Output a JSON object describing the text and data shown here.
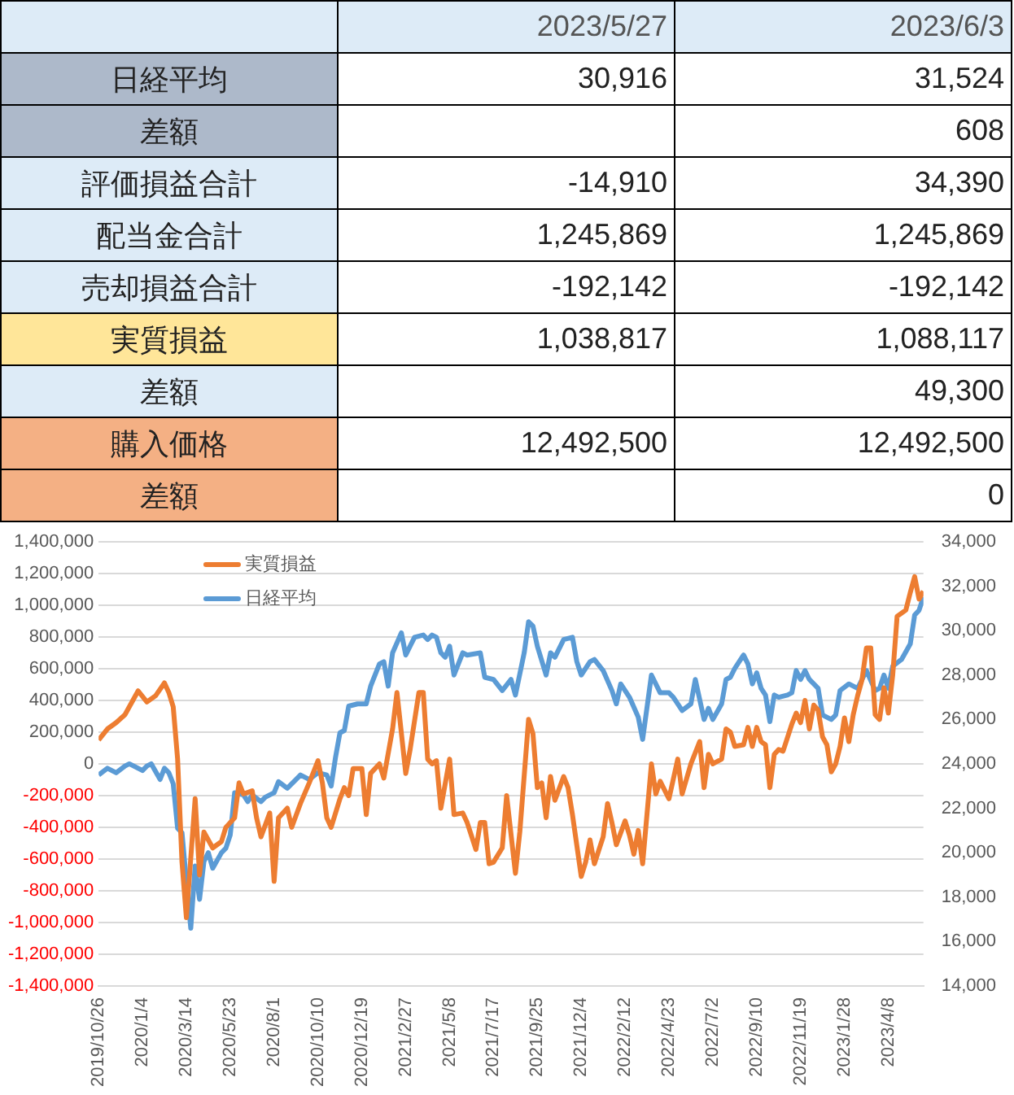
{
  "chart_data": [
    {
      "type": "other",
      "categories": [
        "2023/5/27",
        "2023/6/3"
      ],
      "y_categories": [
        "日経平均",
        "差額",
        "評価損益合計",
        "配当金合計",
        "売却損益合計",
        "実質損益",
        "差額",
        "購入価格",
        "差額"
      ],
      "cell_labels": [
        [
          "30,916",
          "31,524"
        ],
        [
          null,
          "608"
        ],
        [
          "-14,910",
          "34,390"
        ],
        [
          "1,245,869",
          "1,245,869"
        ],
        [
          "-192,142",
          "-192,142"
        ],
        [
          "1,038,817",
          "1,088,117"
        ],
        [
          null,
          "49,300"
        ],
        [
          "12,492,500",
          "12,492,500"
        ],
        [
          null,
          "0"
        ]
      ]
    },
    {
      "type": "line",
      "grid": "y",
      "legend": "top left",
      "xlim": [
        "2019-10-26",
        "2023-06-03"
      ],
      "xticks": [
        {
          "value": "2019-10-26",
          "label": "2019/10/26"
        },
        {
          "value": "2020-01-04",
          "label": "2020/1/4"
        },
        {
          "value": "2020-03-14",
          "label": "2020/3/14"
        },
        {
          "value": "2020-05-23",
          "label": "2020/5/23"
        },
        {
          "value": "2020-08-01",
          "label": "2020/8/1"
        },
        {
          "value": "2020-10-10",
          "label": "2020/10/10"
        },
        {
          "value": "2020-12-19",
          "label": "2020/12/19"
        },
        {
          "value": "2021-02-27",
          "label": "2021/2/27"
        },
        {
          "value": "2021-05-08",
          "label": "2021/5/8"
        },
        {
          "value": "2021-07-17",
          "label": "2021/7/17"
        },
        {
          "value": "2021-09-25",
          "label": "2021/9/25"
        },
        {
          "value": "2021-12-04",
          "label": "2021/12/4"
        },
        {
          "value": "2022-02-12",
          "label": "2022/2/12"
        },
        {
          "value": "2022-04-23",
          "label": "2022/4/23"
        },
        {
          "value": "2022-07-02",
          "label": "2022/7/2"
        },
        {
          "value": "2022-09-10",
          "label": "2022/9/10"
        },
        {
          "value": "2022-11-19",
          "label": "2022/11/19"
        },
        {
          "value": "2023-01-28",
          "label": "2023/1/28"
        },
        {
          "value": "2023-04-08",
          "label": "2023/4/8"
        }
      ],
      "ylim": [
        -1400000,
        1400000
      ],
      "yticks": [
        {
          "value": -1400000,
          "label": "-1,400,000"
        },
        {
          "value": -1200000,
          "label": "-1,200,000"
        },
        {
          "value": -1000000,
          "label": "-1,000,000"
        },
        {
          "value": -800000,
          "label": "-800,000"
        },
        {
          "value": -600000,
          "label": "-600,000"
        },
        {
          "value": -400000,
          "label": "-400,000"
        },
        {
          "value": -200000,
          "label": "-200,000"
        },
        0,
        {
          "value": 200000,
          "label": "200,000"
        },
        {
          "value": 400000,
          "label": "400,000"
        },
        {
          "value": 600000,
          "label": "600,000"
        },
        {
          "value": 800000,
          "label": "800,000"
        },
        {
          "value": 1000000,
          "label": "1,000,000"
        },
        {
          "value": 1200000,
          "label": "1,200,000"
        },
        {
          "value": 1400000,
          "label": "1,400,000"
        }
      ],
      "y2lim": [
        14000,
        34000
      ],
      "y2ticks": [
        {
          "value": 14000,
          "label": "14,000"
        },
        {
          "value": 16000,
          "label": "16,000"
        },
        {
          "value": 18000,
          "label": "18,000"
        },
        {
          "value": 20000,
          "label": "20,000"
        },
        {
          "value": 22000,
          "label": "22,000"
        },
        {
          "value": 24000,
          "label": "24,000"
        },
        {
          "value": 26000,
          "label": "26,000"
        },
        {
          "value": 28000,
          "label": "28,000"
        },
        {
          "value": 30000,
          "label": "30,000"
        },
        {
          "value": 32000,
          "label": "32,000"
        },
        {
          "value": 34000,
          "label": "34,000"
        }
      ],
      "series": [
        {
          "name": "実質損益",
          "color": "#ed7d31",
          "x": [
            "2019-10-26",
            "2019-11-09",
            "2019-11-23",
            "2019-12-07",
            "2019-12-21",
            "2019-12-28",
            "2020-01-11",
            "2020-01-25",
            "2020-02-08",
            "2020-02-15",
            "2020-02-22",
            "2020-02-29",
            "2020-03-07",
            "2020-03-14",
            "2020-03-28",
            "2020-04-04",
            "2020-04-11",
            "2020-04-25",
            "2020-05-09",
            "2020-05-16",
            "2020-05-30",
            "2020-06-06",
            "2020-06-13",
            "2020-06-27",
            "2020-07-04",
            "2020-07-11",
            "2020-07-25",
            "2020-08-01",
            "2020-08-08",
            "2020-08-22",
            "2020-08-29",
            "2020-09-12",
            "2020-09-26",
            "2020-10-10",
            "2020-10-17",
            "2020-10-24",
            "2020-10-31",
            "2020-11-14",
            "2020-11-21",
            "2020-11-28",
            "2020-12-05",
            "2020-12-19",
            "2020-12-26",
            "2021-01-02",
            "2021-01-16",
            "2021-01-23",
            "2021-02-06",
            "2021-02-13",
            "2021-02-27",
            "2021-03-06",
            "2021-03-20",
            "2021-03-27",
            "2021-04-03",
            "2021-04-10",
            "2021-04-17",
            "2021-04-24",
            "2021-05-08",
            "2021-05-15",
            "2021-05-29",
            "2021-06-05",
            "2021-06-19",
            "2021-06-26",
            "2021-07-03",
            "2021-07-10",
            "2021-07-17",
            "2021-07-31",
            "2021-08-07",
            "2021-08-21",
            "2021-08-28",
            "2021-09-11",
            "2021-09-18",
            "2021-09-25",
            "2021-10-02",
            "2021-10-09",
            "2021-10-16",
            "2021-10-23",
            "2021-11-06",
            "2021-11-13",
            "2021-11-20",
            "2021-12-04",
            "2021-12-11",
            "2021-12-18",
            "2021-12-25",
            "2022-01-08",
            "2022-01-15",
            "2022-01-22",
            "2022-01-29",
            "2022-02-12",
            "2022-02-19",
            "2022-02-26",
            "2022-03-05",
            "2022-03-12",
            "2022-03-26",
            "2022-04-02",
            "2022-04-09",
            "2022-04-23",
            "2022-05-07",
            "2022-05-14",
            "2022-05-28",
            "2022-06-11",
            "2022-06-18",
            "2022-06-25",
            "2022-07-02",
            "2022-07-16",
            "2022-07-23",
            "2022-07-30",
            "2022-08-06",
            "2022-08-20",
            "2022-08-27",
            "2022-09-03",
            "2022-09-10",
            "2022-09-17",
            "2022-09-24",
            "2022-10-01",
            "2022-10-08",
            "2022-10-15",
            "2022-10-22",
            "2022-11-05",
            "2022-11-12",
            "2022-11-19",
            "2022-11-26",
            "2022-12-03",
            "2022-12-10",
            "2022-12-17",
            "2022-12-24",
            "2022-12-31",
            "2023-01-07",
            "2023-01-14",
            "2023-01-21",
            "2023-01-28",
            "2023-02-04",
            "2023-02-11",
            "2023-02-18",
            "2023-02-25",
            "2023-03-04",
            "2023-03-11",
            "2023-03-18",
            "2023-03-25",
            "2023-04-01",
            "2023-04-08",
            "2023-04-15",
            "2023-04-22",
            "2023-05-06",
            "2023-05-13",
            "2023-05-20",
            "2023-05-27",
            "2023-06-03"
          ],
          "values": [
            150000,
            220000,
            260000,
            310000,
            410000,
            460000,
            390000,
            430000,
            510000,
            450000,
            360000,
            30000,
            -620000,
            -970000,
            -220000,
            -700000,
            -430000,
            -530000,
            -490000,
            -400000,
            -340000,
            -120000,
            -190000,
            -170000,
            -340000,
            -460000,
            -310000,
            -740000,
            -340000,
            -280000,
            -400000,
            -250000,
            -120000,
            20000,
            -120000,
            -340000,
            -400000,
            -220000,
            -150000,
            -200000,
            -30000,
            -30000,
            -320000,
            -60000,
            0,
            -90000,
            220000,
            450000,
            -60000,
            90000,
            450000,
            450000,
            30000,
            0,
            20000,
            -280000,
            30000,
            -320000,
            -310000,
            -370000,
            -540000,
            -370000,
            -370000,
            -630000,
            -620000,
            -530000,
            -200000,
            -690000,
            -430000,
            280000,
            190000,
            -150000,
            -120000,
            -340000,
            -80000,
            -230000,
            -80000,
            -150000,
            -320000,
            -710000,
            -620000,
            -480000,
            -630000,
            -460000,
            -250000,
            -370000,
            -510000,
            -360000,
            -450000,
            -570000,
            -420000,
            -630000,
            0,
            -190000,
            -110000,
            -220000,
            30000,
            -190000,
            0,
            140000,
            -150000,
            60000,
            0,
            30000,
            220000,
            200000,
            110000,
            120000,
            230000,
            110000,
            230000,
            140000,
            120000,
            -150000,
            60000,
            90000,
            80000,
            250000,
            320000,
            260000,
            400000,
            220000,
            370000,
            340000,
            170000,
            120000,
            -50000,
            0,
            110000,
            290000,
            140000,
            310000,
            430000,
            530000,
            730000,
            730000,
            310000,
            280000,
            480000,
            320000,
            560000,
            930000,
            970000,
            1080000,
            1180000,
            1038817,
            1088117
          ]
        },
        {
          "name": "日経平均",
          "color": "#5b9bd5",
          "axis": "y2",
          "x": [
            "2019-10-26",
            "2019-11-09",
            "2019-11-23",
            "2019-12-07",
            "2019-12-14",
            "2019-12-28",
            "2020-01-04",
            "2020-01-11",
            "2020-01-18",
            "2020-02-01",
            "2020-02-08",
            "2020-02-15",
            "2020-02-22",
            "2020-02-29",
            "2020-03-07",
            "2020-03-14",
            "2020-03-21",
            "2020-03-28",
            "2020-04-04",
            "2020-04-11",
            "2020-04-18",
            "2020-04-25",
            "2020-05-09",
            "2020-05-16",
            "2020-05-23",
            "2020-05-30",
            "2020-06-13",
            "2020-06-20",
            "2020-06-27",
            "2020-07-11",
            "2020-07-18",
            "2020-08-01",
            "2020-08-08",
            "2020-08-22",
            "2020-09-05",
            "2020-09-12",
            "2020-09-26",
            "2020-10-10",
            "2020-10-24",
            "2020-10-31",
            "2020-11-07",
            "2020-11-14",
            "2020-11-21",
            "2020-11-28",
            "2020-12-12",
            "2020-12-26",
            "2021-01-02",
            "2021-01-16",
            "2021-01-23",
            "2021-01-30",
            "2021-02-06",
            "2021-02-20",
            "2021-02-27",
            "2021-03-13",
            "2021-03-27",
            "2021-04-03",
            "2021-04-10",
            "2021-04-17",
            "2021-04-24",
            "2021-05-01",
            "2021-05-08",
            "2021-05-15",
            "2021-05-29",
            "2021-06-05",
            "2021-06-26",
            "2021-07-03",
            "2021-07-17",
            "2021-07-31",
            "2021-08-14",
            "2021-08-21",
            "2021-09-04",
            "2021-09-11",
            "2021-09-18",
            "2021-09-25",
            "2021-10-09",
            "2021-10-16",
            "2021-10-23",
            "2021-11-06",
            "2021-11-20",
            "2021-11-27",
            "2021-12-04",
            "2021-12-18",
            "2021-12-25",
            "2022-01-08",
            "2022-01-22",
            "2022-01-29",
            "2022-02-05",
            "2022-02-19",
            "2022-03-05",
            "2022-03-12",
            "2022-03-26",
            "2022-04-09",
            "2022-04-23",
            "2022-04-30",
            "2022-05-14",
            "2022-05-28",
            "2022-06-04",
            "2022-06-18",
            "2022-06-25",
            "2022-07-02",
            "2022-07-16",
            "2022-07-23",
            "2022-07-30",
            "2022-08-06",
            "2022-08-20",
            "2022-08-27",
            "2022-09-03",
            "2022-09-10",
            "2022-09-17",
            "2022-09-24",
            "2022-10-01",
            "2022-10-08",
            "2022-10-15",
            "2022-10-29",
            "2022-11-05",
            "2022-11-12",
            "2022-11-19",
            "2022-11-26",
            "2022-12-03",
            "2022-12-17",
            "2022-12-24",
            "2023-01-07",
            "2023-01-14",
            "2023-01-21",
            "2023-02-04",
            "2023-02-18",
            "2023-02-25",
            "2023-03-04",
            "2023-03-18",
            "2023-03-25",
            "2023-04-01",
            "2023-04-08",
            "2023-04-15",
            "2023-04-29",
            "2023-05-13",
            "2023-05-20",
            "2023-05-27",
            "2023-06-03"
          ],
          "values": [
            23500,
            23800,
            23600,
            23900,
            24000,
            23800,
            23700,
            23900,
            24000,
            23300,
            23800,
            23600,
            23100,
            21100,
            20900,
            18700,
            16600,
            19400,
            17900,
            19600,
            20000,
            19300,
            20000,
            20200,
            20800,
            22700,
            22600,
            22300,
            22600,
            22300,
            22500,
            22700,
            23200,
            22900,
            23300,
            23500,
            23300,
            23600,
            23500,
            23000,
            24300,
            25400,
            25500,
            26600,
            26700,
            26700,
            27500,
            28500,
            28600,
            27500,
            29000,
            29900,
            28900,
            29700,
            29800,
            29600,
            29800,
            29700,
            29000,
            28800,
            29300,
            28000,
            29000,
            28900,
            29000,
            27900,
            27800,
            27300,
            27800,
            27100,
            29000,
            30400,
            30200,
            29300,
            28000,
            29000,
            28800,
            29600,
            29700,
            28600,
            28000,
            28600,
            28700,
            28200,
            27300,
            26700,
            27600,
            27000,
            26100,
            25100,
            28000,
            27200,
            27200,
            27000,
            26400,
            26700,
            27800,
            26000,
            26500,
            26000,
            26700,
            27800,
            27900,
            28300,
            28900,
            28500,
            27600,
            28100,
            27400,
            27100,
            25900,
            27100,
            27000,
            27100,
            27200,
            28200,
            27800,
            28200,
            27800,
            27400,
            26200,
            26000,
            26200,
            27300,
            27600,
            27400,
            27800,
            28200,
            27300,
            27400,
            28000,
            27400,
            28400,
            28700,
            29400,
            30700,
            30916,
            31524
          ]
        }
      ]
    }
  ]
}
